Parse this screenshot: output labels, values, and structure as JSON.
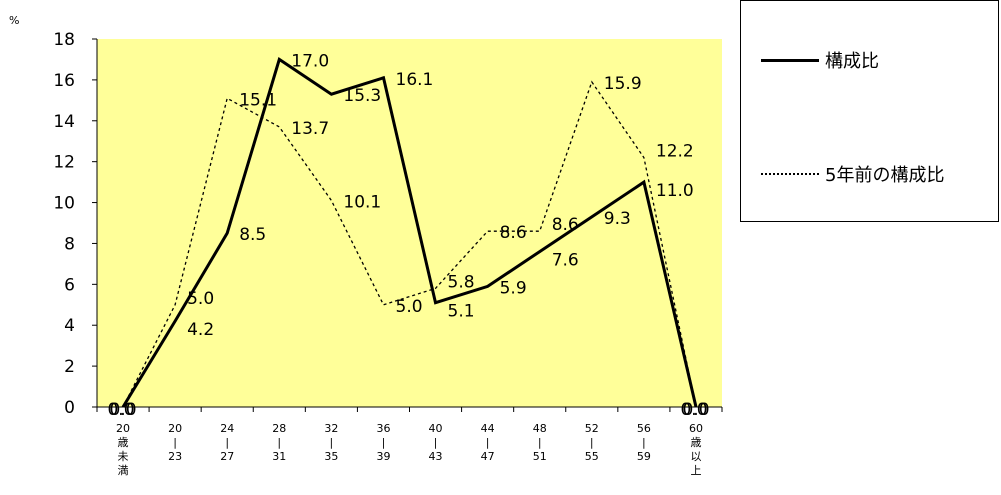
{
  "chart_data": {
    "type": "line",
    "unit_label": "%",
    "ylim": [
      0,
      18
    ],
    "yticks": [
      "0",
      "2",
      "4",
      "6",
      "8",
      "10",
      "12",
      "14",
      "16",
      "18"
    ],
    "categories": [
      [
        "20",
        "歳",
        "未",
        "満"
      ],
      [
        "20",
        "|",
        "23"
      ],
      [
        "24",
        "|",
        "27"
      ],
      [
        "28",
        "|",
        "31"
      ],
      [
        "32",
        "|",
        "35"
      ],
      [
        "36",
        "|",
        "39"
      ],
      [
        "40",
        "|",
        "43"
      ],
      [
        "44",
        "|",
        "47"
      ],
      [
        "48",
        "|",
        "51"
      ],
      [
        "52",
        "|",
        "55"
      ],
      [
        "56",
        "|",
        "59"
      ],
      [
        "60",
        "歳",
        "以",
        "上"
      ]
    ],
    "series": [
      {
        "name": "構成比",
        "style": "solid",
        "values": [
          0.0,
          4.2,
          8.5,
          17.0,
          15.3,
          16.1,
          5.1,
          5.9,
          7.6,
          9.3,
          11.0,
          0.0
        ],
        "labels": [
          "0.0",
          "4.2",
          "8.5",
          "17.0",
          "15.3",
          "16.1",
          "5.1",
          "5.9",
          "7.6",
          "9.3",
          "11.0",
          "0.0"
        ]
      },
      {
        "name": "5年前の構成比",
        "style": "dotted",
        "values": [
          0.0,
          5.0,
          15.1,
          13.7,
          10.1,
          5.0,
          5.8,
          8.6,
          8.6,
          15.9,
          12.2,
          0.0
        ],
        "labels": [
          "0.0",
          "5.0",
          "15.1",
          "13.7",
          "10.1",
          "5.0",
          "5.8",
          "8.6",
          "8.6",
          "15.9",
          "12.2",
          "0.0"
        ]
      }
    ],
    "plot_background": "#ffff99",
    "grid": false,
    "legend_position": "top-right"
  },
  "legend": {
    "items": [
      "構成比",
      "5年前の構成比"
    ]
  }
}
